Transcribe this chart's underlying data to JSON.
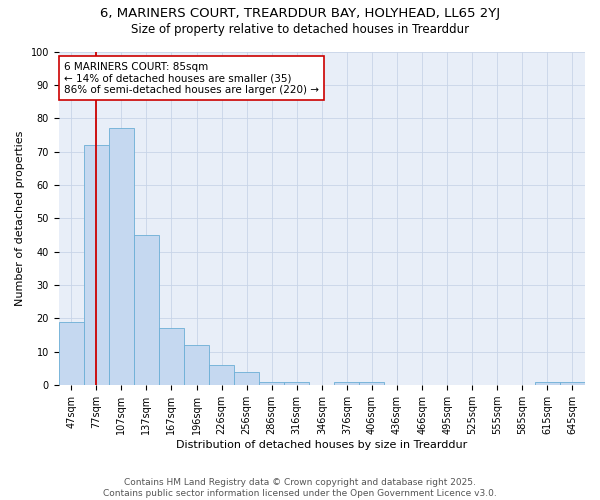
{
  "title1": "6, MARINERS COURT, TREARDDUR BAY, HOLYHEAD, LL65 2YJ",
  "title2": "Size of property relative to detached houses in Trearddur",
  "xlabel": "Distribution of detached houses by size in Trearddur",
  "ylabel": "Number of detached properties",
  "categories": [
    "47sqm",
    "77sqm",
    "107sqm",
    "137sqm",
    "167sqm",
    "196sqm",
    "226sqm",
    "256sqm",
    "286sqm",
    "316sqm",
    "346sqm",
    "376sqm",
    "406sqm",
    "436sqm",
    "466sqm",
    "495sqm",
    "525sqm",
    "555sqm",
    "585sqm",
    "615sqm",
    "645sqm"
  ],
  "values": [
    19,
    72,
    77,
    45,
    17,
    12,
    6,
    4,
    1,
    1,
    0,
    1,
    1,
    0,
    0,
    0,
    0,
    0,
    0,
    1,
    1
  ],
  "bar_color": "#c5d8f0",
  "bar_edge_color": "#6baed6",
  "vline_x": 1,
  "vline_color": "#cc0000",
  "annotation_text": "6 MARINERS COURT: 85sqm\n← 14% of detached houses are smaller (35)\n86% of semi-detached houses are larger (220) →",
  "annotation_box_color": "#ffffff",
  "annotation_box_edge": "#cc0000",
  "ylim": [
    0,
    100
  ],
  "yticks": [
    0,
    10,
    20,
    30,
    40,
    50,
    60,
    70,
    80,
    90,
    100
  ],
  "grid_color": "#c8d4e8",
  "footer1": "Contains HM Land Registry data © Crown copyright and database right 2025.",
  "footer2": "Contains public sector information licensed under the Open Government Licence v3.0.",
  "bg_color": "#e8eef8",
  "title_fontsize": 9.5,
  "subtitle_fontsize": 8.5,
  "axis_label_fontsize": 8,
  "tick_fontsize": 7,
  "annotation_fontsize": 7.5,
  "footer_fontsize": 6.5
}
